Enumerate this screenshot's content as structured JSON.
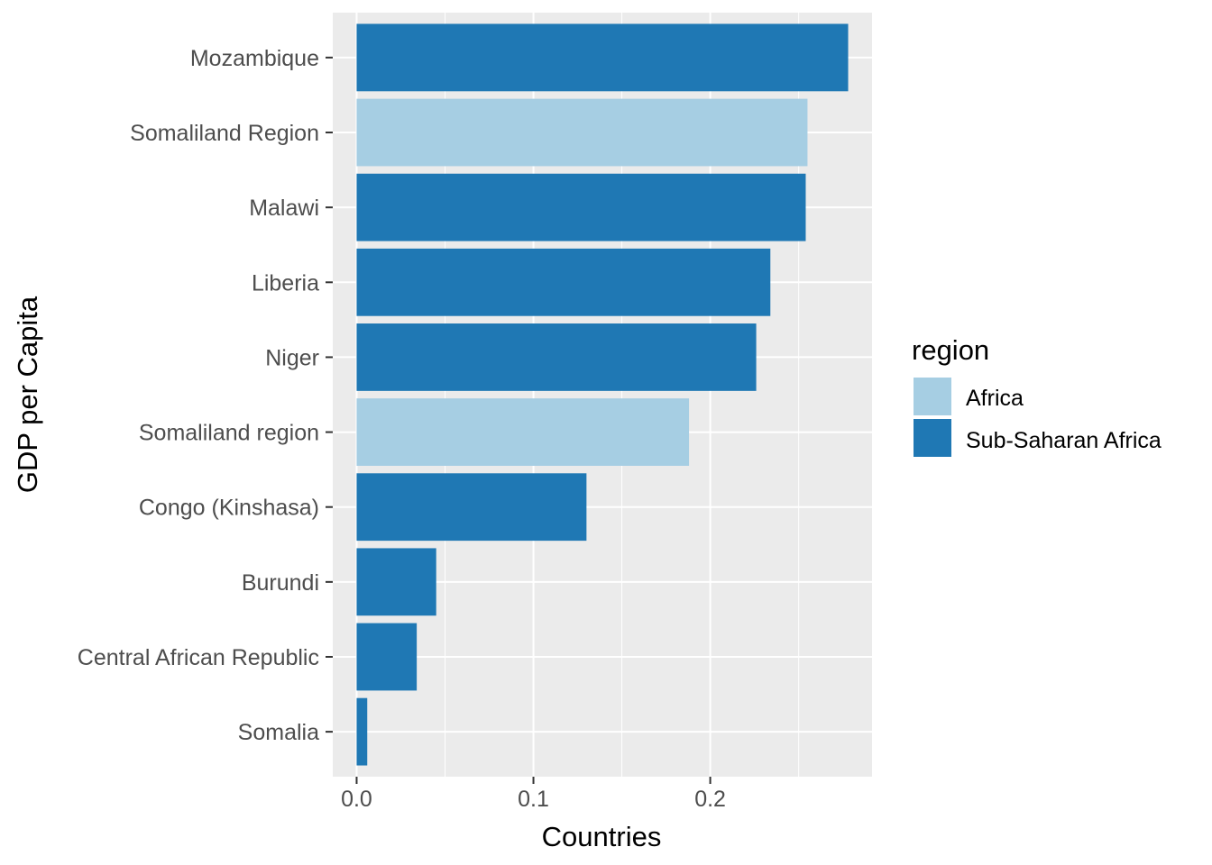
{
  "chart_data": {
    "type": "bar",
    "orientation": "horizontal",
    "xlabel": "Countries",
    "ylabel": "GDP per Capita",
    "xlim": [
      -0.0135,
      0.2915
    ],
    "x_ticks": [
      0.0,
      0.1,
      0.2
    ],
    "x_tick_labels": [
      "0.0",
      "0.1",
      "0.2"
    ],
    "grid": true,
    "legend": {
      "title": "region",
      "position": "right",
      "entries": [
        {
          "label": "Africa",
          "color": "#a6cee3"
        },
        {
          "label": "Sub-Saharan Africa",
          "color": "#1f78b4"
        }
      ]
    },
    "bars": [
      {
        "category": "Mozambique",
        "value": 0.278,
        "region": "Sub-Saharan Africa"
      },
      {
        "category": "Somaliland Region",
        "value": 0.255,
        "region": "Africa"
      },
      {
        "category": "Malawi",
        "value": 0.254,
        "region": "Sub-Saharan Africa"
      },
      {
        "category": "Liberia",
        "value": 0.234,
        "region": "Sub-Saharan Africa"
      },
      {
        "category": "Niger",
        "value": 0.226,
        "region": "Sub-Saharan Africa"
      },
      {
        "category": "Somaliland region",
        "value": 0.188,
        "region": "Africa"
      },
      {
        "category": "Congo (Kinshasa)",
        "value": 0.13,
        "region": "Sub-Saharan Africa"
      },
      {
        "category": "Burundi",
        "value": 0.045,
        "region": "Sub-Saharan Africa"
      },
      {
        "category": "Central African Republic",
        "value": 0.034,
        "region": "Sub-Saharan Africa"
      },
      {
        "category": "Somalia",
        "value": 0.006,
        "region": "Sub-Saharan Africa"
      }
    ]
  }
}
